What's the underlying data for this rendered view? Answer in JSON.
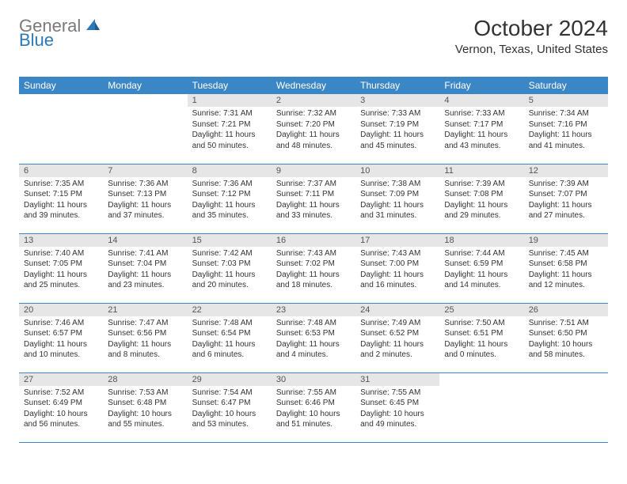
{
  "logo": {
    "part1": "General",
    "part2": "Blue"
  },
  "title": "October 2024",
  "location": "Vernon, Texas, United States",
  "colors": {
    "header_bg": "#3b86c4",
    "header_text": "#ffffff",
    "daynum_bg": "#e6e6e6",
    "daynum_text": "#555555",
    "body_text": "#333333",
    "divider": "#3b86c4",
    "logo_blue": "#2a7ab8",
    "logo_gray": "#7a7a7a"
  },
  "day_headers": [
    "Sunday",
    "Monday",
    "Tuesday",
    "Wednesday",
    "Thursday",
    "Friday",
    "Saturday"
  ],
  "weeks": [
    [
      {
        "n": "",
        "sun": "",
        "set": "",
        "day": ""
      },
      {
        "n": "",
        "sun": "",
        "set": "",
        "day": ""
      },
      {
        "n": "1",
        "sun": "Sunrise: 7:31 AM",
        "set": "Sunset: 7:21 PM",
        "day": "Daylight: 11 hours and 50 minutes."
      },
      {
        "n": "2",
        "sun": "Sunrise: 7:32 AM",
        "set": "Sunset: 7:20 PM",
        "day": "Daylight: 11 hours and 48 minutes."
      },
      {
        "n": "3",
        "sun": "Sunrise: 7:33 AM",
        "set": "Sunset: 7:19 PM",
        "day": "Daylight: 11 hours and 45 minutes."
      },
      {
        "n": "4",
        "sun": "Sunrise: 7:33 AM",
        "set": "Sunset: 7:17 PM",
        "day": "Daylight: 11 hours and 43 minutes."
      },
      {
        "n": "5",
        "sun": "Sunrise: 7:34 AM",
        "set": "Sunset: 7:16 PM",
        "day": "Daylight: 11 hours and 41 minutes."
      }
    ],
    [
      {
        "n": "6",
        "sun": "Sunrise: 7:35 AM",
        "set": "Sunset: 7:15 PM",
        "day": "Daylight: 11 hours and 39 minutes."
      },
      {
        "n": "7",
        "sun": "Sunrise: 7:36 AM",
        "set": "Sunset: 7:13 PM",
        "day": "Daylight: 11 hours and 37 minutes."
      },
      {
        "n": "8",
        "sun": "Sunrise: 7:36 AM",
        "set": "Sunset: 7:12 PM",
        "day": "Daylight: 11 hours and 35 minutes."
      },
      {
        "n": "9",
        "sun": "Sunrise: 7:37 AM",
        "set": "Sunset: 7:11 PM",
        "day": "Daylight: 11 hours and 33 minutes."
      },
      {
        "n": "10",
        "sun": "Sunrise: 7:38 AM",
        "set": "Sunset: 7:09 PM",
        "day": "Daylight: 11 hours and 31 minutes."
      },
      {
        "n": "11",
        "sun": "Sunrise: 7:39 AM",
        "set": "Sunset: 7:08 PM",
        "day": "Daylight: 11 hours and 29 minutes."
      },
      {
        "n": "12",
        "sun": "Sunrise: 7:39 AM",
        "set": "Sunset: 7:07 PM",
        "day": "Daylight: 11 hours and 27 minutes."
      }
    ],
    [
      {
        "n": "13",
        "sun": "Sunrise: 7:40 AM",
        "set": "Sunset: 7:05 PM",
        "day": "Daylight: 11 hours and 25 minutes."
      },
      {
        "n": "14",
        "sun": "Sunrise: 7:41 AM",
        "set": "Sunset: 7:04 PM",
        "day": "Daylight: 11 hours and 23 minutes."
      },
      {
        "n": "15",
        "sun": "Sunrise: 7:42 AM",
        "set": "Sunset: 7:03 PM",
        "day": "Daylight: 11 hours and 20 minutes."
      },
      {
        "n": "16",
        "sun": "Sunrise: 7:43 AM",
        "set": "Sunset: 7:02 PM",
        "day": "Daylight: 11 hours and 18 minutes."
      },
      {
        "n": "17",
        "sun": "Sunrise: 7:43 AM",
        "set": "Sunset: 7:00 PM",
        "day": "Daylight: 11 hours and 16 minutes."
      },
      {
        "n": "18",
        "sun": "Sunrise: 7:44 AM",
        "set": "Sunset: 6:59 PM",
        "day": "Daylight: 11 hours and 14 minutes."
      },
      {
        "n": "19",
        "sun": "Sunrise: 7:45 AM",
        "set": "Sunset: 6:58 PM",
        "day": "Daylight: 11 hours and 12 minutes."
      }
    ],
    [
      {
        "n": "20",
        "sun": "Sunrise: 7:46 AM",
        "set": "Sunset: 6:57 PM",
        "day": "Daylight: 11 hours and 10 minutes."
      },
      {
        "n": "21",
        "sun": "Sunrise: 7:47 AM",
        "set": "Sunset: 6:56 PM",
        "day": "Daylight: 11 hours and 8 minutes."
      },
      {
        "n": "22",
        "sun": "Sunrise: 7:48 AM",
        "set": "Sunset: 6:54 PM",
        "day": "Daylight: 11 hours and 6 minutes."
      },
      {
        "n": "23",
        "sun": "Sunrise: 7:48 AM",
        "set": "Sunset: 6:53 PM",
        "day": "Daylight: 11 hours and 4 minutes."
      },
      {
        "n": "24",
        "sun": "Sunrise: 7:49 AM",
        "set": "Sunset: 6:52 PM",
        "day": "Daylight: 11 hours and 2 minutes."
      },
      {
        "n": "25",
        "sun": "Sunrise: 7:50 AM",
        "set": "Sunset: 6:51 PM",
        "day": "Daylight: 11 hours and 0 minutes."
      },
      {
        "n": "26",
        "sun": "Sunrise: 7:51 AM",
        "set": "Sunset: 6:50 PM",
        "day": "Daylight: 10 hours and 58 minutes."
      }
    ],
    [
      {
        "n": "27",
        "sun": "Sunrise: 7:52 AM",
        "set": "Sunset: 6:49 PM",
        "day": "Daylight: 10 hours and 56 minutes."
      },
      {
        "n": "28",
        "sun": "Sunrise: 7:53 AM",
        "set": "Sunset: 6:48 PM",
        "day": "Daylight: 10 hours and 55 minutes."
      },
      {
        "n": "29",
        "sun": "Sunrise: 7:54 AM",
        "set": "Sunset: 6:47 PM",
        "day": "Daylight: 10 hours and 53 minutes."
      },
      {
        "n": "30",
        "sun": "Sunrise: 7:55 AM",
        "set": "Sunset: 6:46 PM",
        "day": "Daylight: 10 hours and 51 minutes."
      },
      {
        "n": "31",
        "sun": "Sunrise: 7:55 AM",
        "set": "Sunset: 6:45 PM",
        "day": "Daylight: 10 hours and 49 minutes."
      },
      {
        "n": "",
        "sun": "",
        "set": "",
        "day": ""
      },
      {
        "n": "",
        "sun": "",
        "set": "",
        "day": ""
      }
    ]
  ]
}
